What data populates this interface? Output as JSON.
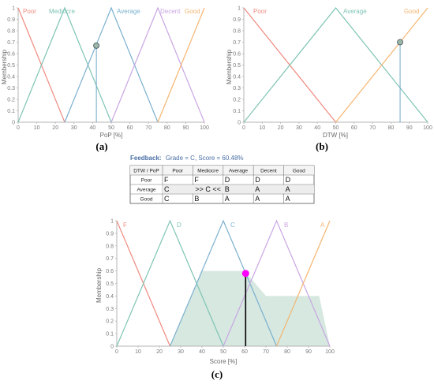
{
  "panels": [
    {
      "id": "a",
      "label": "(a)",
      "chart_data": {
        "type": "line",
        "xlabel": "PoP [%]",
        "ylabel": "Membership",
        "xlim": [
          0,
          100
        ],
        "ylim": [
          0,
          1
        ],
        "xticks": [
          0,
          10,
          20,
          30,
          40,
          50,
          60,
          70,
          80,
          90,
          100
        ],
        "yticks": [
          0,
          0.1,
          0.2,
          0.3,
          0.4,
          0.5,
          0.6,
          0.7,
          0.8,
          0.9,
          1
        ],
        "ytick_labels": [
          "0",
          "0.1",
          "0.2",
          "0.3",
          "0.4",
          "0.5",
          "0.6",
          "0.7",
          "0.8",
          "0.9",
          "1"
        ],
        "series": [
          {
            "name": "Poor",
            "color": "#f08a80",
            "x": [
              0,
              25
            ],
            "y": [
              1,
              0
            ]
          },
          {
            "name": "Mediocre",
            "color": "#7ec4b4",
            "x": [
              0,
              25,
              50
            ],
            "y": [
              0,
              1,
              0
            ]
          },
          {
            "name": "Average",
            "color": "#7ab0cf",
            "x": [
              25,
              50,
              75
            ],
            "y": [
              0,
              1,
              0
            ]
          },
          {
            "name": "Decent",
            "color": "#c9a6e3",
            "x": [
              50,
              75,
              100
            ],
            "y": [
              0,
              1,
              0
            ]
          },
          {
            "name": "Good",
            "color": "#f5b570",
            "x": [
              75,
              100
            ],
            "y": [
              0,
              1
            ]
          }
        ],
        "marker": {
          "x": 42,
          "y": 0.67
        }
      }
    },
    {
      "id": "b",
      "label": "(b)",
      "chart_data": {
        "type": "line",
        "xlabel": "DTW [%]",
        "ylabel": "Membership",
        "xlim": [
          0,
          100
        ],
        "ylim": [
          0,
          1
        ],
        "xticks": [
          0,
          10,
          20,
          30,
          40,
          50,
          60,
          70,
          80,
          90,
          100
        ],
        "yticks": [
          0,
          0.1,
          0.2,
          0.3,
          0.4,
          0.5,
          0.6,
          0.7,
          0.8,
          0.9,
          1
        ],
        "ytick_labels": [
          "0",
          "0.1",
          "0.2",
          "0.3",
          "0.4",
          "0.5",
          "0.6",
          "0.7",
          "0.8",
          "0.9",
          "1"
        ],
        "series": [
          {
            "name": "Poor",
            "color": "#f08a80",
            "x": [
              0,
              50
            ],
            "y": [
              1,
              0
            ]
          },
          {
            "name": "Average",
            "color": "#7ec4b4",
            "x": [
              0,
              50,
              100
            ],
            "y": [
              0,
              1,
              0
            ]
          },
          {
            "name": "Good",
            "color": "#f5b570",
            "x": [
              50,
              100
            ],
            "y": [
              0,
              1
            ]
          }
        ],
        "marker": {
          "x": 85,
          "y": 0.7
        }
      }
    },
    {
      "id": "c",
      "label": "(c)",
      "chart_data": {
        "type": "area",
        "xlabel": "Score [%]",
        "ylabel": "Membership",
        "xlim": [
          0,
          100
        ],
        "ylim": [
          0,
          1
        ],
        "xticks": [
          0,
          10,
          20,
          30,
          40,
          50,
          60,
          70,
          80,
          90,
          100
        ],
        "yticks": [
          0,
          0.1,
          0.2,
          0.3,
          0.4,
          0.5,
          0.6,
          0.7,
          0.8,
          0.9,
          1
        ],
        "ytick_labels": [
          "0",
          "0.1",
          "0.2",
          "0.3",
          "0.4",
          "0.5",
          "0.6",
          "0.7",
          "0.8",
          "0.9",
          "1"
        ],
        "series": [
          {
            "name": "F",
            "color": "#f08a80",
            "x": [
              0,
              25
            ],
            "y": [
              1,
              0
            ]
          },
          {
            "name": "D",
            "color": "#7ec4b4",
            "x": [
              0,
              25,
              50
            ],
            "y": [
              0,
              1,
              0
            ]
          },
          {
            "name": "C",
            "color": "#7ab0cf",
            "x": [
              25,
              50,
              75
            ],
            "y": [
              0,
              1,
              0
            ]
          },
          {
            "name": "B",
            "color": "#c9a6e3",
            "x": [
              50,
              75,
              100
            ],
            "y": [
              0,
              1,
              0
            ]
          },
          {
            "name": "A",
            "color": "#f5b570",
            "x": [
              75,
              100
            ],
            "y": [
              0,
              1
            ]
          }
        ],
        "aggregate_area": {
          "x": [
            25,
            40,
            60,
            70,
            95,
            100
          ],
          "y": [
            0,
            0.6,
            0.6,
            0.4,
            0.4,
            0
          ],
          "color": "#d6e8e0"
        },
        "marker": {
          "x": 60.48,
          "y": 0.58,
          "color": "#ff00ff"
        }
      }
    }
  ],
  "feedback": {
    "label": "Feedback:",
    "text": "Grade = C, Score = 60.48%"
  },
  "rule_table": {
    "corner": "DTW / PoP",
    "columns": [
      "Poor",
      "Mediocre",
      "Average",
      "Decent",
      "Good"
    ],
    "rows": [
      {
        "label": "Poor",
        "cells": [
          "F",
          "F",
          "D",
          "D",
          "D"
        ]
      },
      {
        "label": "Average",
        "cells": [
          "C",
          ">> C <<",
          "B",
          "A",
          "A"
        ]
      },
      {
        "label": "Good",
        "cells": [
          "C",
          "B",
          "A",
          "A",
          "A"
        ]
      }
    ]
  }
}
